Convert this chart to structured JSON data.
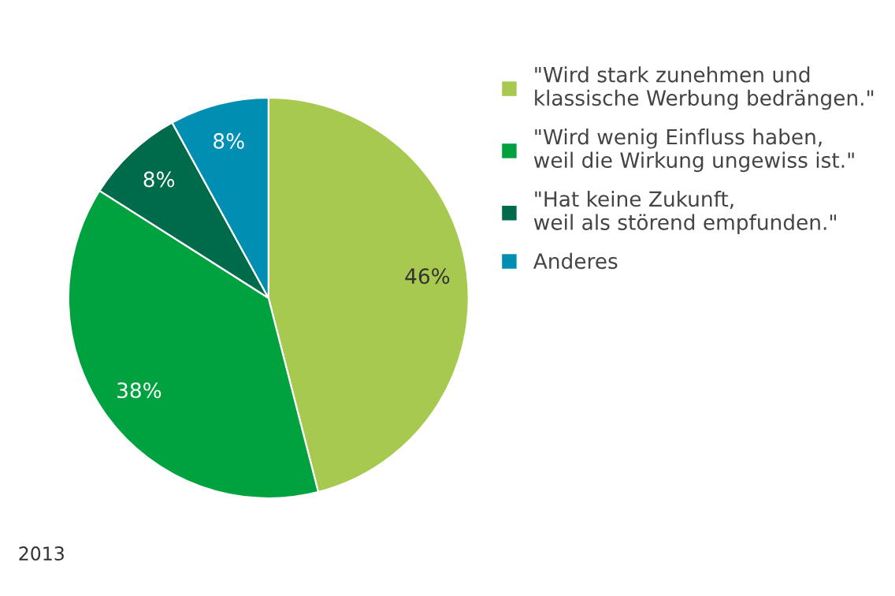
{
  "chart_data": {
    "type": "pie",
    "categories": [
      "\"Wird stark zunehmen und\nklassische Werbung bedrängen.\"",
      "\"Wird wenig Einfluss haben,\nweil die Wirkung ungewiss ist.\"",
      "\"Hat keine Zukunft,\nweil als störend empfunden.\"",
      "Anderes"
    ],
    "values": [
      46,
      38,
      8,
      8
    ],
    "colors": [
      "#a8c94f",
      "#00a23f",
      "#006b4b",
      "#008fb3"
    ],
    "value_labels": [
      "46%",
      "38%",
      "8%",
      "8%"
    ],
    "legend": "right",
    "annotations": [
      "2013"
    ]
  }
}
